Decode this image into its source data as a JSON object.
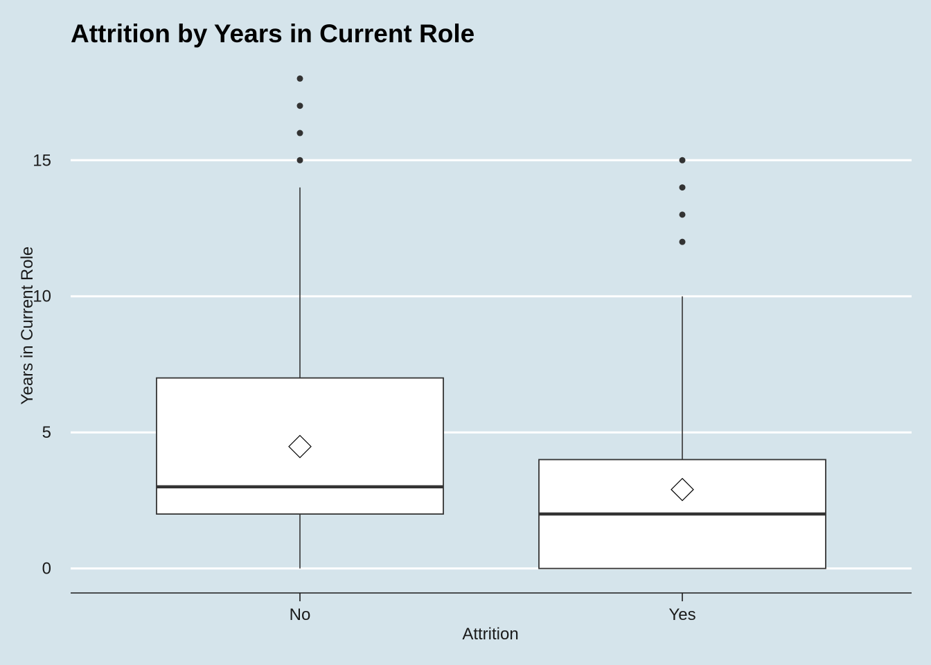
{
  "chart_data": {
    "type": "boxplot",
    "title": "Attrition by Years in Current Role",
    "xlabel": "Attrition",
    "ylabel": "Years in Current Role",
    "categories": [
      "No",
      "Yes"
    ],
    "ylim": [
      -0.9,
      18.8
    ],
    "yticks": [
      0,
      5,
      10,
      15
    ],
    "grid": "horizontal major lines at y ticks",
    "legend": "none",
    "colors": {
      "background": "#d5e4eb",
      "gridline": "#ffffff",
      "box_fill": "#ffffff",
      "box_stroke": "#333333",
      "outlier": "#333333"
    },
    "boxes": [
      {
        "category": "No",
        "whisker_low": 0,
        "q1": 2,
        "median": 3,
        "q3": 7,
        "whisker_high": 14,
        "mean": 4.48,
        "outliers": [
          15,
          16,
          17,
          18
        ]
      },
      {
        "category": "Yes",
        "whisker_low": 0,
        "q1": 0,
        "median": 2,
        "q3": 4,
        "whisker_high": 10,
        "mean": 2.9,
        "outliers": [
          12,
          13,
          14,
          15
        ]
      }
    ]
  }
}
